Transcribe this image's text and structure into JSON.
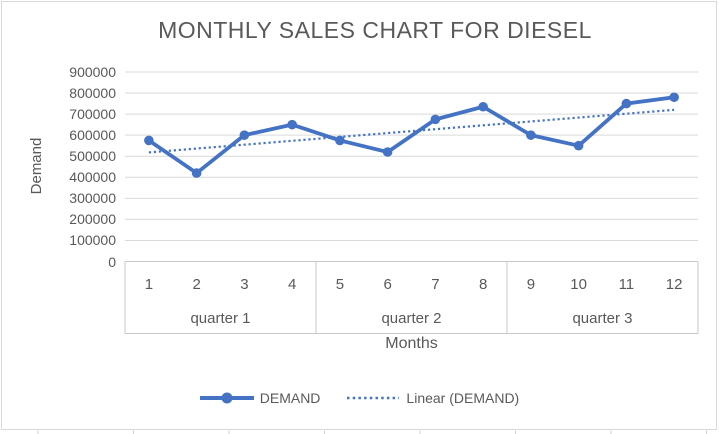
{
  "chart_data": {
    "type": "line",
    "title": "MONTHLY SALES CHART FOR DIESEL",
    "xlabel": "Months",
    "ylabel": "Demand",
    "categories": [
      "1",
      "2",
      "3",
      "4",
      "5",
      "6",
      "7",
      "8",
      "9",
      "10",
      "11",
      "12"
    ],
    "category_groups": [
      {
        "label": "quarter 1",
        "start": 1,
        "end": 4
      },
      {
        "label": "quarter 2",
        "start": 5,
        "end": 8
      },
      {
        "label": "quarter 3",
        "start": 9,
        "end": 12
      }
    ],
    "series": [
      {
        "name": "DEMAND",
        "type": "line",
        "marker": "circle",
        "color": "#4472C4",
        "values": [
          575000,
          420000,
          600000,
          650000,
          575000,
          520000,
          675000,
          735000,
          600000,
          550000,
          750000,
          780000
        ]
      },
      {
        "name": "Linear (DEMAND)",
        "type": "linear-trendline",
        "of_series": "DEMAND",
        "line_style": "dotted",
        "color": "#4472C4"
      }
    ],
    "ylim": [
      0,
      900000
    ],
    "ytick_interval": 100000,
    "ytick_labels": [
      "0",
      "100000",
      "200000",
      "300000",
      "400000",
      "500000",
      "600000",
      "700000",
      "800000",
      "900000"
    ],
    "grid": true,
    "legend_position": "bottom",
    "legend_labels": [
      "DEMAND",
      "Linear (DEMAND)"
    ]
  },
  "colors": {
    "series_blue": "#4472C4",
    "gridline": "#D9D9D9",
    "axis_line": "#C9C9C9",
    "axis_text": "#595959",
    "title_text": "#595959",
    "frame_border": "#D9D9D9",
    "sheet_gridline": "#D0CECE",
    "background": "#FFFFFF"
  }
}
